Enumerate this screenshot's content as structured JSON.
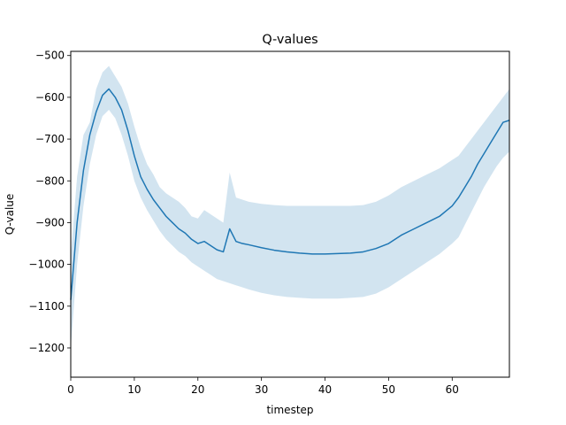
{
  "chart_data": {
    "type": "line",
    "title": "Q-values",
    "xlabel": "timestep",
    "ylabel": "Q-value",
    "xlim": [
      0,
      69
    ],
    "ylim": [
      -1270,
      -490
    ],
    "xticks": [
      0,
      10,
      20,
      30,
      40,
      50,
      60
    ],
    "yticks": [
      -500,
      -600,
      -700,
      -800,
      -900,
      -1000,
      -1100,
      -1200
    ],
    "grid": false,
    "legend": "none",
    "colors": {
      "line": "#1f77b4",
      "band": "#1f77b4"
    },
    "series": [
      {
        "x": [
          0,
          1,
          2,
          3,
          4,
          5,
          6,
          7,
          8,
          9,
          10,
          11,
          12,
          13,
          14,
          15,
          16,
          17,
          18,
          19,
          20,
          21,
          22,
          23,
          24,
          25,
          26,
          27,
          28,
          30,
          32,
          34,
          36,
          38,
          40,
          42,
          44,
          46,
          48,
          50,
          52,
          54,
          56,
          58,
          60,
          61,
          62,
          63,
          64,
          65,
          66,
          67,
          68,
          69
        ],
        "values": [
          -1085,
          -900,
          -775,
          -690,
          -635,
          -595,
          -580,
          -600,
          -630,
          -680,
          -740,
          -790,
          -820,
          -845,
          -865,
          -885,
          -900,
          -915,
          -925,
          -940,
          -950,
          -945,
          -955,
          -965,
          -970,
          -915,
          -945,
          -950,
          -953,
          -960,
          -966,
          -970,
          -973,
          -975,
          -975,
          -974,
          -973,
          -970,
          -962,
          -950,
          -930,
          -915,
          -900,
          -885,
          -860,
          -840,
          -815,
          -790,
          -760,
          -735,
          -710,
          -685,
          -660,
          -655
        ],
        "band_upper": [
          -980,
          -790,
          -690,
          -660,
          -580,
          -540,
          -525,
          -550,
          -575,
          -615,
          -670,
          -720,
          -760,
          -785,
          -815,
          -830,
          -840,
          -850,
          -865,
          -885,
          -890,
          -870,
          -880,
          -890,
          -900,
          -780,
          -840,
          -845,
          -850,
          -855,
          -858,
          -860,
          -860,
          -860,
          -860,
          -860,
          -860,
          -858,
          -850,
          -835,
          -815,
          -800,
          -785,
          -770,
          -750,
          -740,
          -720,
          -700,
          -680,
          -660,
          -640,
          -620,
          -600,
          -580
        ],
        "band_lower": [
          -1200,
          -1000,
          -860,
          -760,
          -690,
          -645,
          -630,
          -650,
          -690,
          -740,
          -800,
          -840,
          -870,
          -895,
          -920,
          -940,
          -955,
          -970,
          -980,
          -995,
          -1005,
          -1015,
          -1025,
          -1035,
          -1040,
          -1045,
          -1050,
          -1055,
          -1060,
          -1068,
          -1074,
          -1078,
          -1080,
          -1082,
          -1082,
          -1082,
          -1080,
          -1078,
          -1070,
          -1055,
          -1035,
          -1015,
          -995,
          -975,
          -950,
          -935,
          -905,
          -875,
          -845,
          -815,
          -790,
          -765,
          -745,
          -730
        ]
      }
    ]
  }
}
